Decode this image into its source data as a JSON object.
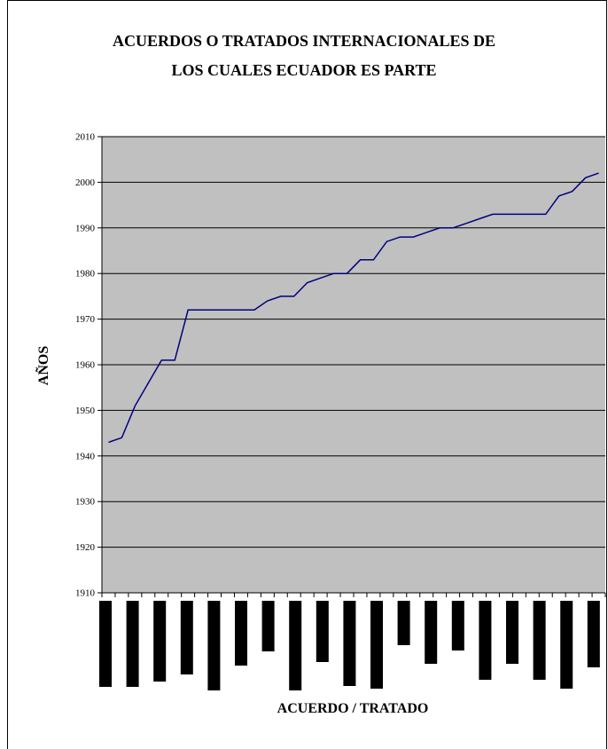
{
  "chart_data": {
    "type": "line",
    "title": [
      "ACUERDOS O TRATADOS INTERNACIONALES DE",
      "LOS CUALES ECUADOR ES PARTE"
    ],
    "xlabel": "ACUERDO / TRATADO",
    "ylabel": "AÑOS",
    "ylim": [
      1910,
      2010
    ],
    "yticks": [
      1910,
      1920,
      1930,
      1940,
      1950,
      1960,
      1970,
      1980,
      1990,
      2000,
      2010
    ],
    "grid": true,
    "legend": "none",
    "series": [
      {
        "values": [
          1943,
          1944,
          1951,
          1956,
          1961,
          1961,
          1972,
          1972,
          1972,
          1972,
          1972,
          1972,
          1974,
          1975,
          1975,
          1978,
          1979,
          1980,
          1980,
          1983,
          1983,
          1987,
          1988,
          1988,
          1989,
          1990,
          1990,
          1991,
          1992,
          1993,
          1993,
          1993,
          1993,
          1993,
          1997,
          1998,
          2001,
          2002
        ]
      }
    ],
    "category_labels_redacted": [
      97,
      97,
      91,
      83,
      101,
      73,
      57,
      101,
      69,
      96,
      99,
      50,
      71,
      56,
      89,
      71,
      89,
      99,
      75
    ],
    "colors": {
      "plot_bg": "#c0c0c0",
      "line": "#000080",
      "grid": "#000000",
      "redaction": "#000000"
    }
  }
}
